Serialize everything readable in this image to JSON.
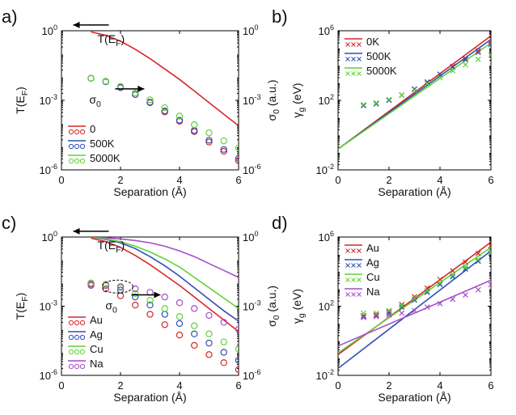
{
  "colors": {
    "axis": "#000000",
    "red": "#d62728",
    "blue": "#2f50b5",
    "green": "#5fd435",
    "purple": "#a64dc9"
  },
  "chart_data": [
    {
      "panel_label": "a)",
      "type": "line",
      "xlabel": "Separation (Å)",
      "xlim": [
        0,
        6
      ],
      "xticks": [
        "0",
        "2",
        "4",
        "6"
      ],
      "ylabel_left": "T(E_F)",
      "ylabel_right": "σ_0 (a.u.)",
      "yscale": "log",
      "ylim_exp": [
        -6,
        0
      ],
      "ytick_exponents": [
        0,
        -3,
        -6
      ],
      "annotations": [
        {
          "text": "T(E_F)",
          "arrow": "left",
          "xy": [
            1.0,
            0.25
          ]
        },
        {
          "text": "σ_0",
          "arrow": "right",
          "xy": [
            1.05,
            -2.3
          ]
        }
      ],
      "legend": {
        "position": "bottom-left",
        "entries": [
          {
            "label": "0",
            "color": "red"
          },
          {
            "label": "500K",
            "color": "blue"
          },
          {
            "label": "5000K",
            "color": "green"
          }
        ]
      },
      "series": [
        {
          "kind": "line",
          "axis": "left",
          "color": "red",
          "x": [
            1.0,
            1.5,
            2.0,
            2.5,
            3.0,
            3.5,
            4.0,
            4.5,
            5.0,
            5.5,
            6.0
          ],
          "y_exp": [
            -0.05,
            -0.2,
            -0.45,
            -0.8,
            -1.2,
            -1.65,
            -2.1,
            -2.6,
            -3.1,
            -3.6,
            -4.1
          ]
        },
        {
          "kind": "markers",
          "marker": "circle",
          "axis": "right",
          "color": "red",
          "x": [
            1.0,
            1.5,
            2.0,
            2.5,
            3.0,
            3.5,
            4.0,
            4.5,
            5.0,
            5.5,
            6.0
          ],
          "y_exp": [
            -2.05,
            -2.2,
            -2.45,
            -2.75,
            -3.1,
            -3.5,
            -3.9,
            -4.35,
            -4.8,
            -5.2,
            -5.6
          ]
        },
        {
          "kind": "markers",
          "marker": "circle",
          "axis": "right",
          "color": "blue",
          "x": [
            1.0,
            1.5,
            2.0,
            2.5,
            3.0,
            3.5,
            4.0,
            4.5,
            5.0,
            5.5,
            6.0
          ],
          "y_exp": [
            -2.05,
            -2.2,
            -2.45,
            -2.75,
            -3.08,
            -3.46,
            -3.86,
            -4.3,
            -4.72,
            -5.12,
            -5.5
          ]
        },
        {
          "kind": "markers",
          "marker": "circle",
          "axis": "right",
          "color": "green",
          "x": [
            1.0,
            1.5,
            2.0,
            2.5,
            3.0,
            3.5,
            4.0,
            4.5,
            5.0,
            5.5,
            6.0
          ],
          "y_exp": [
            -2.05,
            -2.18,
            -2.4,
            -2.68,
            -2.98,
            -3.32,
            -3.68,
            -4.05,
            -4.4,
            -4.75,
            -5.05
          ]
        }
      ]
    },
    {
      "panel_label": "b)",
      "type": "line",
      "xlabel": "Separation (Å)",
      "xlim": [
        0,
        6
      ],
      "xticks": [
        "0",
        "2",
        "4",
        "6"
      ],
      "ylabel_left": "γ_g (eV)",
      "yscale": "log",
      "ylim_exp": [
        -2,
        6
      ],
      "ytick_exponents": [
        6,
        2,
        -2
      ],
      "legend": {
        "position": "top-left",
        "entries": [
          {
            "label": "0K",
            "color": "red"
          },
          {
            "label": "500K",
            "color": "blue"
          },
          {
            "label": "5000K",
            "color": "green"
          }
        ]
      },
      "series": [
        {
          "kind": "line",
          "color": "red",
          "x": [
            0,
            6
          ],
          "y_exp": [
            -0.8,
            5.7
          ]
        },
        {
          "kind": "line",
          "color": "blue",
          "x": [
            0,
            6
          ],
          "y_exp": [
            -0.8,
            5.5
          ]
        },
        {
          "kind": "line",
          "color": "green",
          "x": [
            0,
            6
          ],
          "y_exp": [
            -0.8,
            5.3
          ]
        },
        {
          "kind": "markers",
          "marker": "x",
          "color": "red",
          "x": [
            1.0,
            1.5,
            2.0,
            2.5,
            3.0,
            3.5,
            4.0,
            4.5,
            5.0,
            5.5,
            6.0
          ],
          "y_exp": [
            1.7,
            1.8,
            2.0,
            2.3,
            2.65,
            3.05,
            3.5,
            3.95,
            4.4,
            4.85,
            5.3
          ]
        },
        {
          "kind": "markers",
          "marker": "x",
          "color": "blue",
          "x": [
            1.0,
            1.5,
            2.0,
            2.5,
            3.0,
            3.5,
            4.0,
            4.5,
            5.0,
            5.5,
            6.0
          ],
          "y_exp": [
            1.7,
            1.8,
            2.0,
            2.3,
            2.65,
            3.05,
            3.5,
            3.9,
            4.35,
            4.75,
            5.2
          ]
        },
        {
          "kind": "markers",
          "marker": "x",
          "color": "green",
          "x": [
            1.0,
            1.5,
            2.0,
            2.5,
            3.0,
            3.5,
            4.0,
            4.5,
            5.0,
            5.5,
            6.0
          ],
          "y_exp": [
            1.75,
            1.85,
            2.05,
            2.3,
            2.6,
            2.95,
            3.3,
            3.7,
            4.05,
            4.35,
            4.6
          ]
        }
      ]
    },
    {
      "panel_label": "c)",
      "type": "line",
      "xlabel": "Separation (Å)",
      "xlim": [
        0,
        6
      ],
      "xticks": [
        "0",
        "2",
        "4",
        "6"
      ],
      "ylabel_left": "T(E_F)",
      "ylabel_right": "σ_0 (a.u.)",
      "yscale": "log",
      "ylim_exp": [
        -6,
        0
      ],
      "ytick_exponents": [
        0,
        -3,
        -6
      ],
      "annotations": [
        {
          "text": "T(E_F)",
          "arrow": "left",
          "xy": [
            1.0,
            0.25
          ]
        },
        {
          "text": "σ_0",
          "arrow": "right",
          "xy": [
            1.6,
            -2.3
          ]
        }
      ],
      "legend": {
        "position": "bottom-left",
        "entries": [
          {
            "label": "Au",
            "color": "red"
          },
          {
            "label": "Ag",
            "color": "blue"
          },
          {
            "label": "Cu",
            "color": "green"
          },
          {
            "label": "Na",
            "color": "purple"
          }
        ]
      },
      "series": [
        {
          "kind": "line",
          "axis": "left",
          "color": "red",
          "x": [
            1.0,
            1.5,
            2.0,
            2.5,
            3.0,
            3.5,
            4.0,
            4.5,
            5.0,
            5.5,
            6.0
          ],
          "y_exp": [
            -0.05,
            -0.2,
            -0.45,
            -0.8,
            -1.2,
            -1.65,
            -2.1,
            -2.6,
            -3.1,
            -3.6,
            -4.1
          ]
        },
        {
          "kind": "line",
          "axis": "left",
          "color": "blue",
          "x": [
            1.0,
            1.5,
            2.0,
            2.5,
            3.0,
            3.5,
            4.0,
            4.5,
            5.0,
            5.5,
            6.0
          ],
          "y_exp": [
            0,
            -0.1,
            -0.25,
            -0.5,
            -0.85,
            -1.25,
            -1.7,
            -2.2,
            -2.7,
            -3.2,
            -3.65
          ]
        },
        {
          "kind": "line",
          "axis": "left",
          "color": "green",
          "x": [
            1.0,
            1.5,
            2.0,
            2.5,
            3.0,
            3.5,
            4.0,
            4.5,
            5.0,
            5.5,
            6.0
          ],
          "y_exp": [
            0,
            -0.08,
            -0.2,
            -0.4,
            -0.65,
            -0.95,
            -1.3,
            -1.75,
            -2.2,
            -2.65,
            -3.1
          ]
        },
        {
          "kind": "line",
          "axis": "left",
          "color": "purple",
          "x": [
            1.0,
            1.5,
            2.0,
            2.5,
            3.0,
            3.5,
            4.0,
            4.5,
            5.0,
            5.5,
            6.0
          ],
          "y_exp": [
            0,
            -0.03,
            -0.08,
            -0.15,
            -0.25,
            -0.4,
            -0.6,
            -0.85,
            -1.15,
            -1.45,
            -1.75
          ]
        },
        {
          "kind": "markers",
          "marker": "circle",
          "axis": "right",
          "color": "red",
          "x": [
            1.0,
            1.5,
            2.0,
            2.5,
            3.0,
            3.5,
            4.0,
            4.5,
            5.0,
            5.5,
            6.0
          ],
          "y_exp": [
            -2.05,
            -2.25,
            -2.55,
            -2.95,
            -3.35,
            -3.8,
            -4.25,
            -4.7,
            -5.1,
            -5.45,
            -5.75
          ]
        },
        {
          "kind": "markers",
          "marker": "circle",
          "axis": "right",
          "color": "blue",
          "x": [
            1.0,
            1.5,
            2.0,
            2.5,
            3.0,
            3.5,
            4.0,
            4.5,
            5.0,
            5.5,
            6.0
          ],
          "y_exp": [
            -2.0,
            -2.1,
            -2.3,
            -2.6,
            -2.95,
            -3.35,
            -3.75,
            -4.2,
            -4.6,
            -5.0,
            -5.35
          ]
        },
        {
          "kind": "markers",
          "marker": "circle",
          "axis": "right",
          "color": "green",
          "x": [
            1.0,
            1.5,
            2.0,
            2.5,
            3.0,
            3.5,
            4.0,
            4.5,
            5.0,
            5.5,
            6.0
          ],
          "y_exp": [
            -2.0,
            -2.05,
            -2.2,
            -2.45,
            -2.75,
            -3.1,
            -3.45,
            -3.85,
            -4.2,
            -4.55,
            -4.85
          ]
        },
        {
          "kind": "markers",
          "marker": "circle",
          "axis": "right",
          "color": "purple",
          "x": [
            1.0,
            1.5,
            2.0,
            2.5,
            3.0,
            3.5,
            4.0,
            4.5,
            5.0,
            5.5,
            6.0
          ],
          "y_exp": [
            -2.1,
            -2.1,
            -2.15,
            -2.25,
            -2.4,
            -2.6,
            -2.85,
            -3.1,
            -3.4,
            -3.7,
            -4.0
          ]
        }
      ]
    },
    {
      "panel_label": "d)",
      "type": "line",
      "xlabel": "Separation (Å)",
      "xlim": [
        0,
        6
      ],
      "xticks": [
        "0",
        "2",
        "4",
        "6"
      ],
      "ylabel_left": "γ_g (eV)",
      "yscale": "log",
      "ylim_exp": [
        -2,
        6
      ],
      "ytick_exponents": [
        6,
        2,
        -2
      ],
      "legend": {
        "position": "top-left",
        "entries": [
          {
            "label": "Au",
            "color": "red"
          },
          {
            "label": "Ag",
            "color": "blue"
          },
          {
            "label": "Cu",
            "color": "green"
          },
          {
            "label": "Na",
            "color": "purple"
          }
        ]
      },
      "series": [
        {
          "kind": "line",
          "color": "red",
          "x": [
            0,
            6
          ],
          "y_exp": [
            -0.8,
            5.7
          ]
        },
        {
          "kind": "line",
          "color": "blue",
          "x": [
            0,
            6
          ],
          "y_exp": [
            -1.6,
            5.2
          ]
        },
        {
          "kind": "line",
          "color": "green",
          "x": [
            0,
            6
          ],
          "y_exp": [
            -0.7,
            5.4
          ]
        },
        {
          "kind": "line",
          "color": "purple",
          "x": [
            0,
            6
          ],
          "y_exp": [
            -0.3,
            3.5
          ]
        },
        {
          "kind": "markers",
          "marker": "x",
          "color": "red",
          "x": [
            1.0,
            1.5,
            2.0,
            2.5,
            3.0,
            3.5,
            4.0,
            4.5,
            5.0,
            5.5,
            6.0
          ],
          "y_exp": [
            1.45,
            1.5,
            1.7,
            2.1,
            2.55,
            3.05,
            3.55,
            4.05,
            4.55,
            5.05,
            5.5
          ]
        },
        {
          "kind": "markers",
          "marker": "x",
          "color": "blue",
          "x": [
            1.0,
            1.5,
            2.0,
            2.5,
            3.0,
            3.5,
            4.0,
            4.5,
            5.0,
            5.5,
            6.0
          ],
          "y_exp": [
            1.4,
            1.45,
            1.6,
            1.95,
            2.35,
            2.8,
            3.25,
            3.7,
            4.15,
            4.6,
            5.05
          ]
        },
        {
          "kind": "markers",
          "marker": "x",
          "color": "green",
          "x": [
            1.0,
            1.5,
            2.0,
            2.5,
            3.0,
            3.5,
            4.0,
            4.5,
            5.0,
            5.5,
            6.0
          ],
          "y_exp": [
            1.6,
            1.6,
            1.75,
            2.05,
            2.45,
            2.9,
            3.35,
            3.8,
            4.25,
            4.7,
            5.1
          ]
        },
        {
          "kind": "markers",
          "marker": "x",
          "color": "purple",
          "x": [
            1.0,
            1.5,
            2.0,
            2.5,
            3.0,
            3.5,
            4.0,
            4.5,
            5.0,
            5.5,
            6.0
          ],
          "y_exp": [
            1.35,
            1.4,
            1.5,
            1.6,
            1.75,
            1.95,
            2.15,
            2.4,
            2.65,
            2.95,
            3.25
          ]
        }
      ]
    }
  ]
}
